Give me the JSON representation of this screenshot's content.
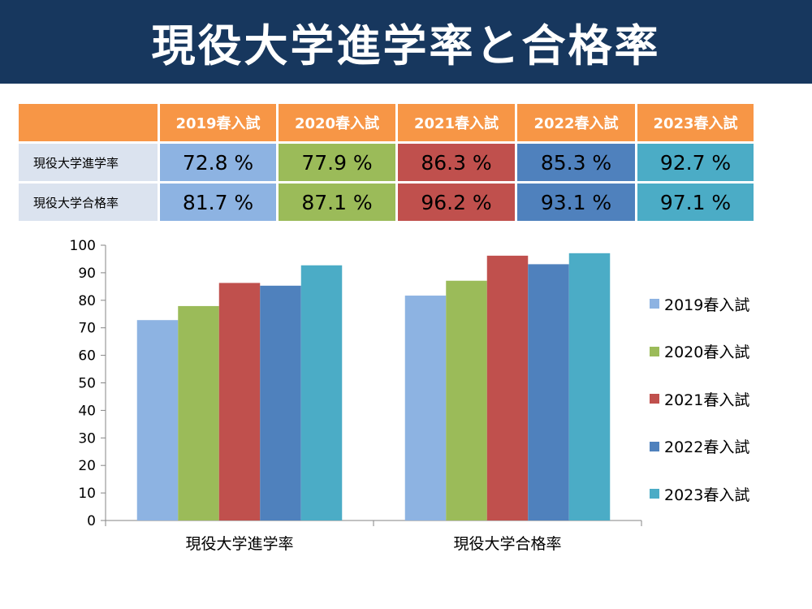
{
  "title": "現役大学進学率と合格率",
  "table": {
    "headers": [
      "2019春入試",
      "2020春入試",
      "2021春入試",
      "2022春入試",
      "2023春入試"
    ],
    "rows": [
      {
        "label": "現役大学進学率",
        "values": [
          "72.8 %",
          "77.9 %",
          "86.3 %",
          "85.3 %",
          "92.7 %"
        ]
      },
      {
        "label": "現役大学合格率",
        "values": [
          "81.7 %",
          "87.1 %",
          "96.2 %",
          "93.1 %",
          "97.1 %"
        ]
      }
    ]
  },
  "colors": {
    "title_bg": "#17375e",
    "header_bg": "#f79646",
    "row_label_bg": "#dbe3ef",
    "series": [
      "#8db3e2",
      "#9bbb59",
      "#c0504d",
      "#4f81bd",
      "#4bacc6"
    ]
  },
  "chart_data": {
    "type": "bar",
    "categories": [
      "現役大学進学率",
      "現役大学合格率"
    ],
    "series": [
      {
        "name": "2019春入試",
        "values": [
          72.8,
          81.7
        ]
      },
      {
        "name": "2020春入試",
        "values": [
          77.9,
          87.1
        ]
      },
      {
        "name": "2021春入試",
        "values": [
          86.3,
          96.2
        ]
      },
      {
        "name": "2022春入試",
        "values": [
          85.3,
          93.1
        ]
      },
      {
        "name": "2023春入試",
        "values": [
          92.7,
          97.1
        ]
      }
    ],
    "ylim": [
      0,
      100
    ],
    "yticks": [
      "0",
      "10",
      "20",
      "30",
      "40",
      "50",
      "60",
      "70",
      "80",
      "90",
      "100"
    ],
    "grid": false,
    "legend": "right"
  }
}
